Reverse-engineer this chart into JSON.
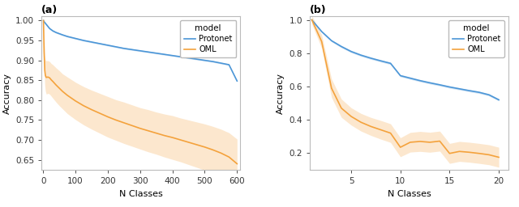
{
  "panel_a": {
    "title": "(a)",
    "xlabel": "N Classes",
    "ylabel": "Accuracy",
    "xlim": [
      -5,
      610
    ],
    "ylim": [
      0.625,
      1.01
    ],
    "yticks": [
      0.65,
      0.7,
      0.75,
      0.8,
      0.85,
      0.9,
      0.95,
      1.0
    ],
    "xticks": [
      0,
      100,
      200,
      300,
      400,
      500,
      600
    ],
    "protonet_x": [
      1,
      2,
      3,
      4,
      5,
      6,
      7,
      8,
      9,
      10,
      15,
      20,
      25,
      30,
      40,
      50,
      60,
      75,
      100,
      125,
      150,
      175,
      200,
      225,
      250,
      275,
      300,
      325,
      350,
      375,
      400,
      425,
      450,
      475,
      500,
      525,
      550,
      575,
      600
    ],
    "protonet_y": [
      1.0,
      0.998,
      0.997,
      0.996,
      0.995,
      0.994,
      0.993,
      0.992,
      0.991,
      0.99,
      0.985,
      0.98,
      0.977,
      0.974,
      0.97,
      0.967,
      0.964,
      0.96,
      0.955,
      0.95,
      0.946,
      0.942,
      0.938,
      0.934,
      0.93,
      0.927,
      0.924,
      0.921,
      0.918,
      0.915,
      0.912,
      0.909,
      0.906,
      0.903,
      0.9,
      0.897,
      0.893,
      0.889,
      0.848
    ],
    "protonet_lo": [
      0.998,
      0.996,
      0.995,
      0.994,
      0.993,
      0.992,
      0.991,
      0.99,
      0.989,
      0.988,
      0.983,
      0.978,
      0.975,
      0.972,
      0.968,
      0.965,
      0.962,
      0.958,
      0.953,
      0.948,
      0.944,
      0.94,
      0.936,
      0.932,
      0.928,
      0.925,
      0.922,
      0.919,
      0.916,
      0.913,
      0.91,
      0.907,
      0.904,
      0.901,
      0.898,
      0.895,
      0.891,
      0.887,
      0.846
    ],
    "protonet_hi": [
      1.002,
      1.0,
      0.999,
      0.998,
      0.997,
      0.996,
      0.995,
      0.994,
      0.993,
      0.992,
      0.987,
      0.982,
      0.979,
      0.976,
      0.972,
      0.969,
      0.966,
      0.962,
      0.957,
      0.952,
      0.948,
      0.944,
      0.94,
      0.936,
      0.932,
      0.929,
      0.926,
      0.923,
      0.92,
      0.917,
      0.914,
      0.911,
      0.908,
      0.905,
      0.902,
      0.899,
      0.895,
      0.891,
      0.85
    ],
    "oml_x": [
      1,
      2,
      3,
      4,
      5,
      6,
      7,
      8,
      9,
      10,
      15,
      20,
      25,
      30,
      40,
      50,
      60,
      75,
      100,
      125,
      150,
      175,
      200,
      225,
      250,
      275,
      300,
      325,
      350,
      375,
      400,
      425,
      450,
      475,
      500,
      525,
      550,
      575,
      600
    ],
    "oml_y": [
      1.0,
      0.96,
      0.92,
      0.9,
      0.875,
      0.868,
      0.862,
      0.86,
      0.858,
      0.857,
      0.858,
      0.856,
      0.851,
      0.847,
      0.838,
      0.83,
      0.822,
      0.812,
      0.798,
      0.786,
      0.776,
      0.767,
      0.758,
      0.75,
      0.743,
      0.736,
      0.729,
      0.723,
      0.717,
      0.711,
      0.706,
      0.7,
      0.694,
      0.688,
      0.682,
      0.675,
      0.667,
      0.657,
      0.64
    ],
    "oml_lo": [
      0.985,
      0.935,
      0.885,
      0.86,
      0.838,
      0.83,
      0.823,
      0.82,
      0.817,
      0.815,
      0.817,
      0.815,
      0.81,
      0.805,
      0.795,
      0.786,
      0.778,
      0.766,
      0.751,
      0.738,
      0.727,
      0.717,
      0.707,
      0.699,
      0.691,
      0.684,
      0.677,
      0.67,
      0.664,
      0.657,
      0.651,
      0.645,
      0.638,
      0.631,
      0.624,
      0.616,
      0.607,
      0.596,
      0.578
    ],
    "oml_hi": [
      1.015,
      0.985,
      0.955,
      0.94,
      0.912,
      0.906,
      0.901,
      0.9,
      0.899,
      0.899,
      0.899,
      0.897,
      0.892,
      0.889,
      0.881,
      0.874,
      0.866,
      0.858,
      0.845,
      0.834,
      0.825,
      0.817,
      0.809,
      0.801,
      0.795,
      0.788,
      0.781,
      0.776,
      0.77,
      0.765,
      0.761,
      0.755,
      0.75,
      0.745,
      0.74,
      0.734,
      0.727,
      0.718,
      0.702
    ]
  },
  "panel_b": {
    "title": "(b)",
    "xlabel": "N Classes",
    "ylabel": "Accuracy",
    "xlim": [
      0.8,
      21
    ],
    "ylim": [
      0.1,
      1.02
    ],
    "yticks": [
      0.2,
      0.4,
      0.6,
      0.8,
      1.0
    ],
    "protonet_x": [
      1,
      2,
      3,
      4,
      5,
      6,
      7,
      8,
      9,
      10,
      11,
      12,
      13,
      14,
      15,
      16,
      17,
      18,
      19,
      20
    ],
    "protonet_y": [
      1.0,
      0.93,
      0.875,
      0.84,
      0.81,
      0.788,
      0.77,
      0.754,
      0.739,
      0.665,
      0.65,
      0.635,
      0.622,
      0.61,
      0.597,
      0.586,
      0.575,
      0.565,
      0.55,
      0.52
    ],
    "protonet_lo": [
      0.998,
      0.925,
      0.869,
      0.833,
      0.803,
      0.781,
      0.763,
      0.747,
      0.732,
      0.658,
      0.643,
      0.628,
      0.615,
      0.603,
      0.59,
      0.579,
      0.568,
      0.558,
      0.543,
      0.513
    ],
    "protonet_hi": [
      1.002,
      0.935,
      0.881,
      0.847,
      0.817,
      0.795,
      0.777,
      0.761,
      0.746,
      0.672,
      0.657,
      0.642,
      0.629,
      0.617,
      0.604,
      0.593,
      0.582,
      0.572,
      0.557,
      0.527
    ],
    "oml_x": [
      1,
      2,
      3,
      4,
      5,
      6,
      7,
      8,
      9,
      10,
      11,
      12,
      13,
      14,
      15,
      16,
      17,
      18,
      19,
      20
    ],
    "oml_y": [
      1.0,
      0.87,
      0.59,
      0.47,
      0.42,
      0.385,
      0.36,
      0.34,
      0.32,
      0.235,
      0.265,
      0.27,
      0.265,
      0.272,
      0.198,
      0.21,
      0.205,
      0.198,
      0.19,
      0.175
    ],
    "oml_lo": [
      0.975,
      0.83,
      0.535,
      0.415,
      0.368,
      0.332,
      0.306,
      0.284,
      0.264,
      0.178,
      0.206,
      0.21,
      0.205,
      0.212,
      0.138,
      0.15,
      0.145,
      0.138,
      0.13,
      0.115
    ],
    "oml_hi": [
      1.025,
      0.91,
      0.645,
      0.525,
      0.472,
      0.438,
      0.414,
      0.396,
      0.376,
      0.292,
      0.324,
      0.33,
      0.325,
      0.332,
      0.258,
      0.27,
      0.265,
      0.258,
      0.25,
      0.235
    ]
  },
  "protonet_color": "#4C96D7",
  "oml_color": "#F4A23C",
  "alpha_fill": 0.25,
  "linewidth": 1.2,
  "legend_title": "model",
  "legend_protonet": "Protonet",
  "legend_oml": "OML",
  "figsize": [
    6.4,
    2.56
  ],
  "dpi": 100
}
